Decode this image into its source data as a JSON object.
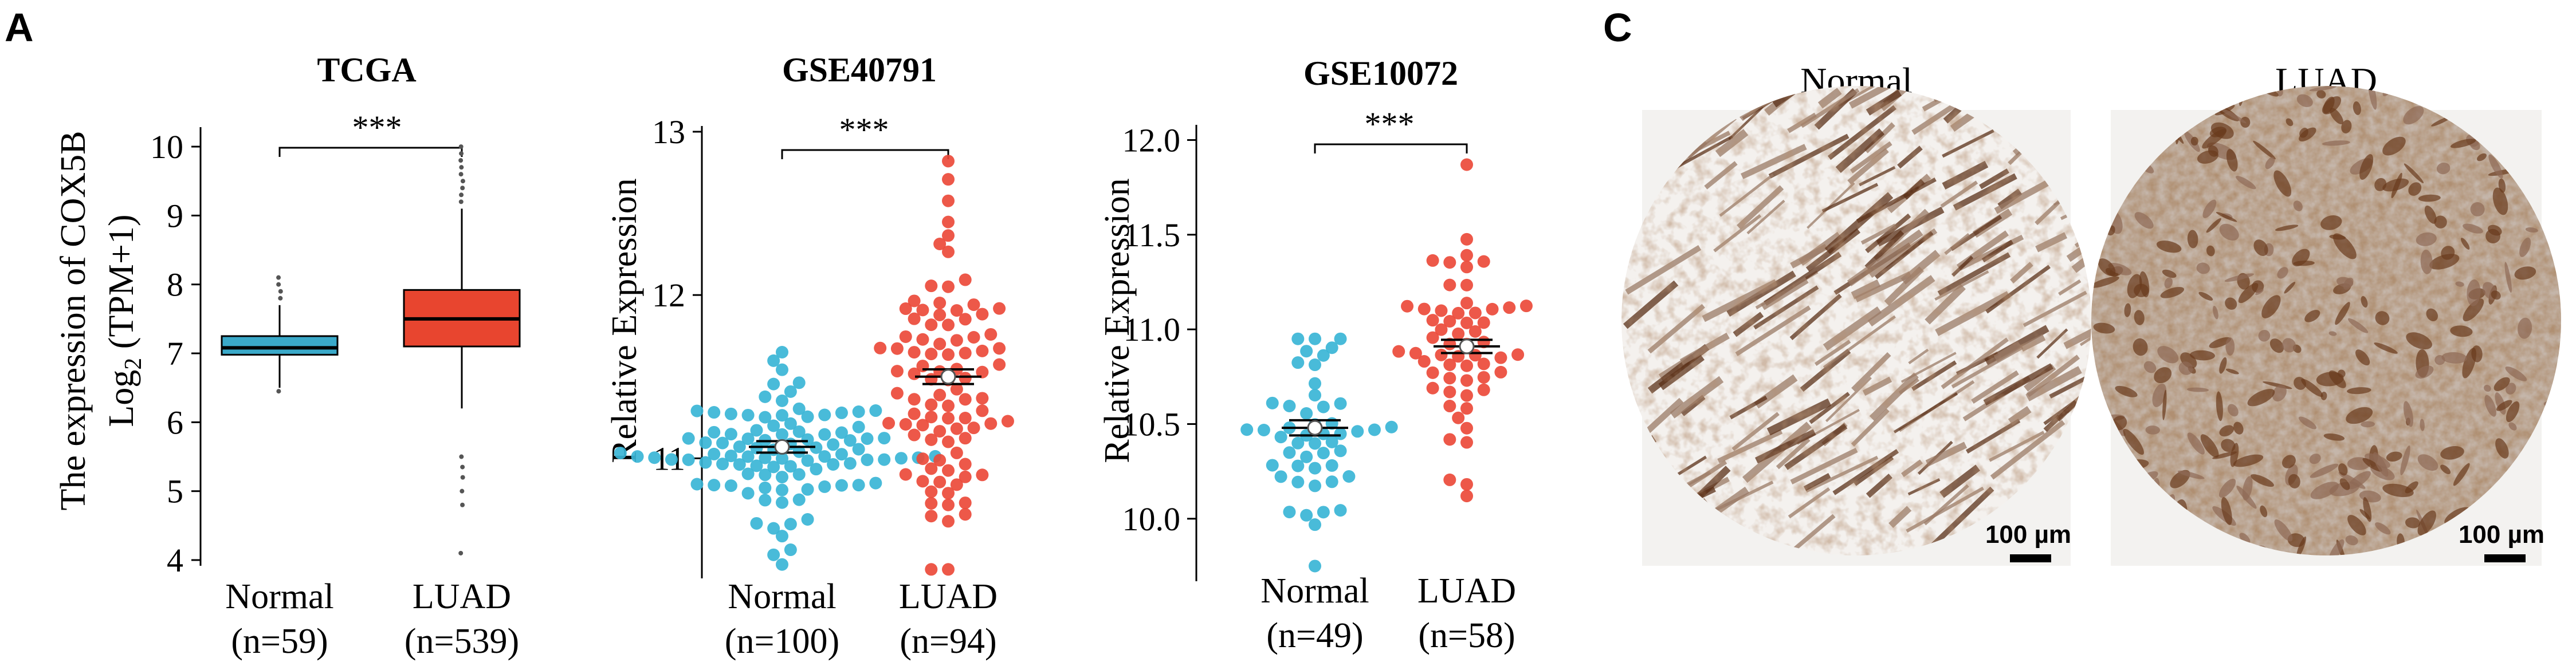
{
  "panel_labels": {
    "a": "A",
    "c": "C"
  },
  "colors": {
    "normal": "#3ab5d6",
    "luad": "#ec4a3a",
    "box_normal": "#3aa9c9",
    "box_luad": "#e8452f"
  },
  "chart_data": [
    {
      "type": "box",
      "title": "TCGA",
      "ylabel_line1": "The expression of COX5B",
      "ylabel_line2_pre": "Log",
      "ylabel_line2_sub": "2",
      "ylabel_line2_post": " (TPM+1)",
      "ylim": [
        4,
        10.2
      ],
      "yticks": [
        "4",
        "5",
        "6",
        "7",
        "8",
        "9",
        "10"
      ],
      "significance": "***",
      "categories": [
        {
          "name": "Normal",
          "n": "(n=59)",
          "q1": 6.98,
          "median": 7.08,
          "q3": 7.25,
          "whisker_low": 6.5,
          "whisker_high": 7.7,
          "outliers": [
            6.45,
            7.8,
            7.9,
            8.0,
            8.1
          ]
        },
        {
          "name": "LUAD",
          "n": "(n=539)",
          "q1": 7.1,
          "median": 7.5,
          "q3": 7.92,
          "whisker_low": 6.2,
          "whisker_high": 9.1,
          "outliers": [
            4.1,
            4.8,
            5.0,
            5.2,
            5.35,
            5.5,
            9.2,
            9.3,
            9.4,
            9.5,
            9.6,
            9.7,
            9.8,
            9.9,
            10.0
          ]
        }
      ]
    },
    {
      "type": "scatter",
      "title": "GSE40791",
      "ylabel": "Relative Expression",
      "ylim": [
        10.3,
        13.0
      ],
      "yticks": [
        "11",
        "12",
        "13"
      ],
      "significance": "***",
      "categories": [
        {
          "name": "Normal",
          "n": "(n=100)",
          "mean": 11.07,
          "sem": 0.03,
          "min": 10.35,
          "max": 11.65,
          "count": 100
        },
        {
          "name": "LUAD",
          "n": "(n=94)",
          "mean": 11.5,
          "sem": 0.045,
          "min": 10.32,
          "max": 12.82,
          "count": 94
        }
      ]
    },
    {
      "type": "scatter",
      "title": "GSE10072",
      "ylabel": "Relative Expression",
      "ylim": [
        9.7,
        12.05
      ],
      "yticks": [
        "10.0",
        "10.5",
        "11.0",
        "11.5",
        "12.0"
      ],
      "significance": "***",
      "categories": [
        {
          "name": "Normal",
          "n": "(n=49)",
          "mean": 10.48,
          "sem": 0.04,
          "min": 9.75,
          "max": 10.95,
          "count": 49
        },
        {
          "name": "LUAD",
          "n": "(n=58)",
          "mean": 10.91,
          "sem": 0.035,
          "min": 10.12,
          "max": 11.87,
          "count": 58
        }
      ]
    }
  ],
  "ihc": [
    {
      "label": "Normal",
      "scale_bar": "100 µm"
    },
    {
      "label": "LUAD",
      "scale_bar": "100 µm"
    }
  ]
}
